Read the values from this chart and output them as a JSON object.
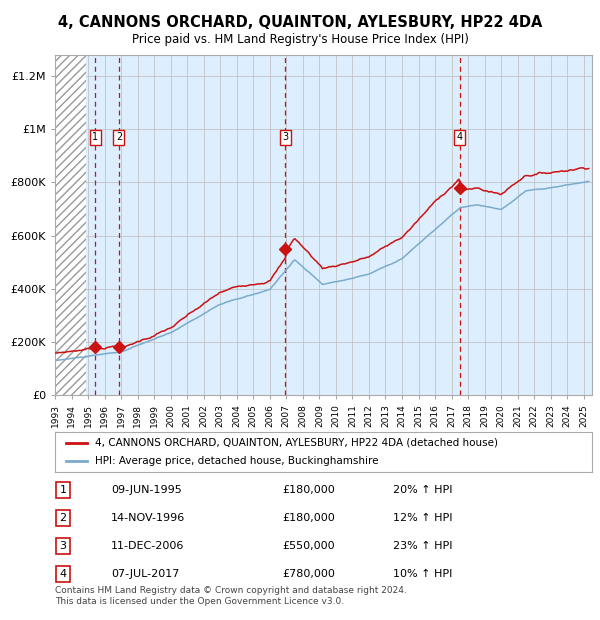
{
  "title": "4, CANNONS ORCHARD, QUAINTON, AYLESBURY, HP22 4DA",
  "subtitle": "Price paid vs. HM Land Registry's House Price Index (HPI)",
  "title_fontsize": 10.5,
  "subtitle_fontsize": 9,
  "ylabel_ticks": [
    "£0",
    "£200K",
    "£400K",
    "£600K",
    "£800K",
    "£1M",
    "£1.2M"
  ],
  "ytick_values": [
    0,
    200000,
    400000,
    600000,
    800000,
    1000000,
    1200000
  ],
  "ylim": [
    0,
    1280000
  ],
  "xlim_start": 1993.0,
  "xlim_end": 2025.5,
  "background_color": "#ffffff",
  "plot_bg_color": "#ddeeff",
  "grid_color": "#bbbbbb",
  "red_line_color": "#cc1111",
  "blue_line_color": "#7aabcc",
  "sale_marker_color": "#cc1111",
  "vline_color": "#cc1111",
  "purchases": [
    {
      "label": "1",
      "date_year": 1995.44,
      "price": 180000
    },
    {
      "label": "2",
      "date_year": 1996.87,
      "price": 180000
    },
    {
      "label": "3",
      "date_year": 2006.95,
      "price": 550000
    },
    {
      "label": "4",
      "date_year": 2017.51,
      "price": 780000
    }
  ],
  "legend_entries": [
    "4, CANNONS ORCHARD, QUAINTON, AYLESBURY, HP22 4DA (detached house)",
    "HPI: Average price, detached house, Buckinghamshire"
  ],
  "table_rows": [
    [
      "1",
      "09-JUN-1995",
      "£180,000",
      "20% ↑ HPI"
    ],
    [
      "2",
      "14-NOV-1996",
      "£180,000",
      "12% ↑ HPI"
    ],
    [
      "3",
      "11-DEC-2006",
      "£550,000",
      "23% ↑ HPI"
    ],
    [
      "4",
      "07-JUL-2017",
      "£780,000",
      "10% ↑ HPI"
    ]
  ],
  "footer": "Contains HM Land Registry data © Crown copyright and database right 2024.\nThis data is licensed under the Open Government Licence v3.0.",
  "hatch_end_year": 1994.9
}
